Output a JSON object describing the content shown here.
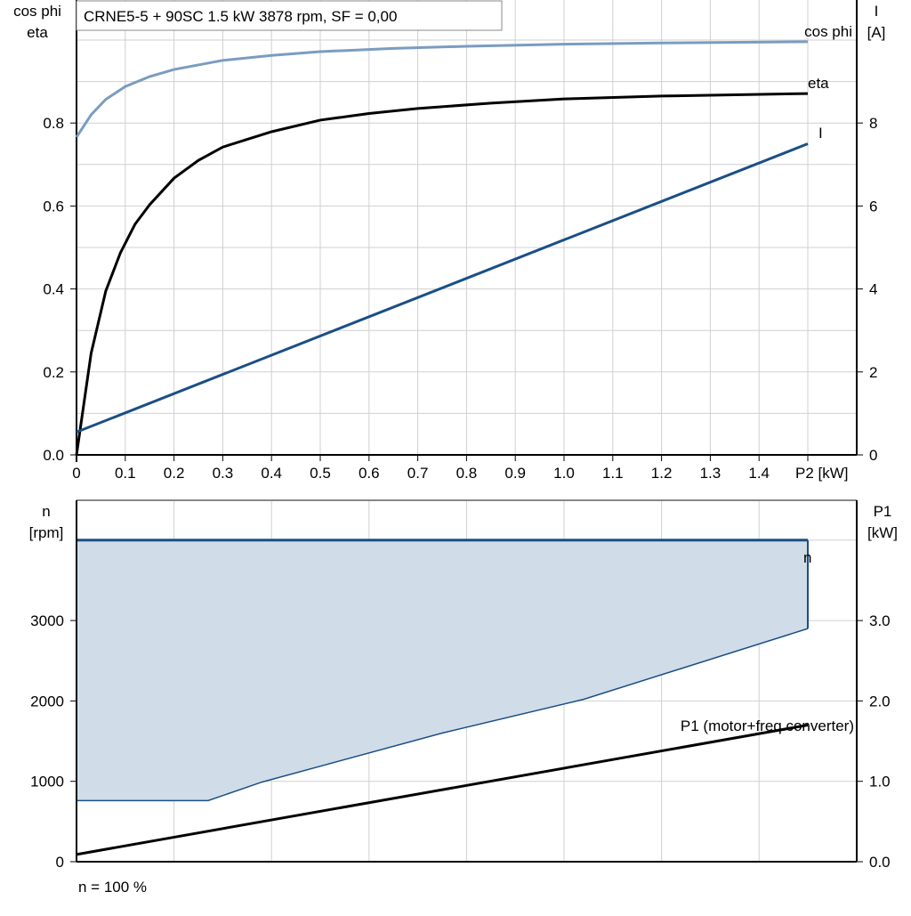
{
  "chart_data": [
    {
      "type": "line",
      "title": "CRNE5-5 + 90SC   1.5 kW   3878 rpm, SF = 0,00",
      "xlabel": "P2 [kW]",
      "ylabel_left": [
        "cos phi",
        "eta"
      ],
      "ylabel_right": [
        "I",
        "[A]"
      ],
      "xlim": [
        0,
        1.6
      ],
      "ylim_left": [
        0,
        1.096
      ],
      "ylim_right": [
        0,
        10.96
      ],
      "x_ticks": [
        "0",
        "0.1",
        "0.2",
        "0.3",
        "0.4",
        "0.5",
        "0.6",
        "0.7",
        "0.8",
        "0.9",
        "1.0",
        "1.1",
        "1.2",
        "1.3",
        "1.4"
      ],
      "y_ticks_left": [
        "0.0",
        "0.2",
        "0.4",
        "0.6",
        "0.8"
      ],
      "y_ticks_right": [
        "0",
        "2",
        "4",
        "6",
        "8"
      ],
      "grid": true,
      "series": [
        {
          "name": "cos phi",
          "axis": "left",
          "color": "#7a9cc0",
          "x": [
            0,
            0.03,
            0.06,
            0.1,
            0.15,
            0.2,
            0.3,
            0.4,
            0.5,
            0.65,
            0.8,
            1.0,
            1.2,
            1.5
          ],
          "y": [
            0.766,
            0.82,
            0.857,
            0.888,
            0.912,
            0.929,
            0.951,
            0.963,
            0.972,
            0.98,
            0.985,
            0.99,
            0.993,
            0.996
          ]
        },
        {
          "name": "eta",
          "axis": "left",
          "color": "#000000",
          "x": [
            0,
            0.03,
            0.06,
            0.09,
            0.12,
            0.15,
            0.2,
            0.25,
            0.3,
            0.4,
            0.5,
            0.6,
            0.7,
            0.85,
            1.0,
            1.2,
            1.5
          ],
          "y": [
            0,
            0.245,
            0.395,
            0.487,
            0.556,
            0.603,
            0.667,
            0.71,
            0.742,
            0.779,
            0.807,
            0.823,
            0.835,
            0.848,
            0.858,
            0.865,
            0.871
          ]
        },
        {
          "name": "I",
          "axis": "right",
          "color": "#1a4f85",
          "x": [
            0,
            1.5
          ],
          "y": [
            0.55,
            7.5
          ]
        }
      ]
    },
    {
      "type": "area",
      "xlim": [
        0,
        1.6
      ],
      "ylabel_left": [
        "n",
        "[rpm]"
      ],
      "ylabel_right": [
        "P1",
        "[kW]"
      ],
      "ylim_left": [
        0,
        4500
      ],
      "ylim_right": [
        0,
        4.5
      ],
      "y_ticks_left": [
        "0",
        "1000",
        "2000",
        "3000"
      ],
      "y_ticks_right": [
        "0.0",
        "1.0",
        "2.0",
        "3.0"
      ],
      "grid": true,
      "footer": "n = 100 %",
      "series": [
        {
          "name": "n",
          "axis": "left",
          "color": "#1a4f85",
          "fill": "#d0dce8",
          "upper_x": [
            0,
            1.5
          ],
          "upper_y": [
            4000,
            4000
          ],
          "lower_x": [
            0,
            0.27,
            0.38,
            0.75,
            1.04,
            1.5
          ],
          "lower_y": [
            760,
            760,
            990,
            1600,
            2020,
            2900
          ]
        },
        {
          "name": "P1 (motor+freq.converter)",
          "axis": "right",
          "color": "#000000",
          "x": [
            0,
            1.5
          ],
          "y": [
            0.09,
            1.7
          ]
        }
      ]
    }
  ]
}
